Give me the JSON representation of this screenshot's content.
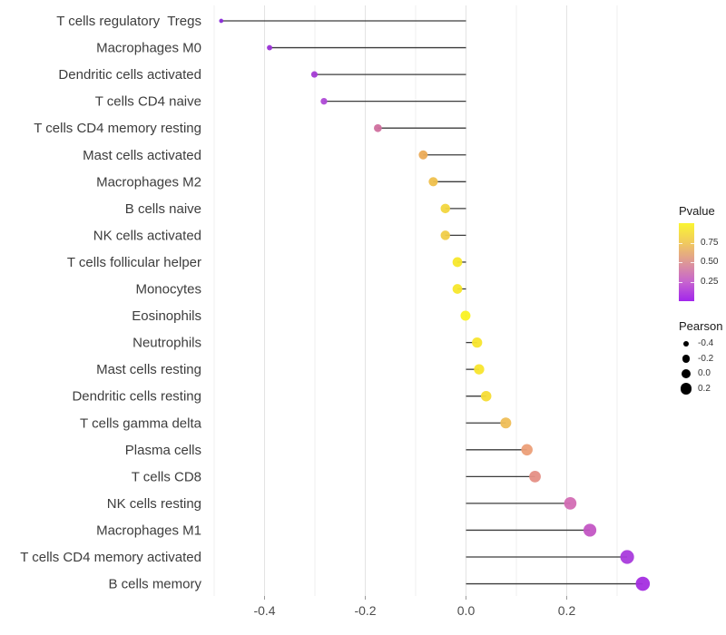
{
  "figure": {
    "background": "#ffffff"
  },
  "chart_data": {
    "type": "lollipop",
    "orientation": "horizontal",
    "title": "",
    "xlabel": "",
    "ylabel": "",
    "xlim": [
      -0.52,
      0.37
    ],
    "baseline": 0.0,
    "x_ticks": [
      -0.4,
      -0.2,
      0.0,
      0.2
    ],
    "x_tick_labels": [
      "-0.4",
      "-0.2",
      "0.0",
      "0.2"
    ],
    "minor_grid_step": 0.1,
    "grid_values": [
      -0.5,
      -0.4,
      -0.3,
      -0.2,
      -0.1,
      0.0,
      0.1,
      0.2,
      0.3
    ],
    "grid_on": true,
    "legend_position": "right",
    "encoding": {
      "x_and_size": "Pearson",
      "color": "Pvalue"
    },
    "points": [
      {
        "label": "T cells regulatory  Tregs",
        "pearson": -0.486,
        "color": "#8A2BD8"
      },
      {
        "label": "Macrophages M0",
        "pearson": -0.39,
        "color": "#9A30D6"
      },
      {
        "label": "Dendritic cells activated",
        "pearson": -0.301,
        "color": "#A43BD4"
      },
      {
        "label": "T cells CD4 naive",
        "pearson": -0.282,
        "color": "#AE49D6"
      },
      {
        "label": "T cells CD4 memory resting",
        "pearson": -0.175,
        "color": "#D06F9E"
      },
      {
        "label": "Mast cells activated",
        "pearson": -0.085,
        "color": "#EBAB57"
      },
      {
        "label": "Macrophages M2",
        "pearson": -0.065,
        "color": "#EFC04C"
      },
      {
        "label": "B cells naive",
        "pearson": -0.041,
        "color": "#F2D63E"
      },
      {
        "label": "NK cells activated",
        "pearson": -0.041,
        "color": "#F0CC48"
      },
      {
        "label": "T cells follicular helper",
        "pearson": -0.017,
        "color": "#F7E72B"
      },
      {
        "label": "Monocytes",
        "pearson": -0.017,
        "color": "#F7E72B"
      },
      {
        "label": "Eosinophils",
        "pearson": -0.001,
        "color": "#FAF222"
      },
      {
        "label": "Neutrophils",
        "pearson": 0.022,
        "color": "#F8E52D"
      },
      {
        "label": "Mast cells resting",
        "pearson": 0.026,
        "color": "#F8E52D"
      },
      {
        "label": "Dendritic cells resting",
        "pearson": 0.04,
        "color": "#F5DC35"
      },
      {
        "label": "T cells gamma delta",
        "pearson": 0.079,
        "color": "#EFBE57"
      },
      {
        "label": "Plasma cells",
        "pearson": 0.121,
        "color": "#EC9F78"
      },
      {
        "label": "T cells CD8",
        "pearson": 0.137,
        "color": "#E58F85"
      },
      {
        "label": "NK cells resting",
        "pearson": 0.207,
        "color": "#D36DB4"
      },
      {
        "label": "Macrophages M1",
        "pearson": 0.246,
        "color": "#C356C4"
      },
      {
        "label": "T cells CD4 memory activated",
        "pearson": 0.32,
        "color": "#A93BDC"
      },
      {
        "label": "B cells memory",
        "pearson": 0.351,
        "color": "#A42DE0"
      }
    ]
  },
  "legend": {
    "pvalue": {
      "title": "Pvalue",
      "tick_labels": [
        "0.75",
        "0.50",
        "0.25"
      ],
      "tick_values": [
        0.75,
        0.5,
        0.25
      ],
      "range": [
        0,
        1
      ],
      "gradient_top_to_bottom": [
        "#FAF532",
        "#F1CA5E",
        "#DE9896",
        "#C765CE",
        "#A226EC"
      ]
    },
    "pearson": {
      "title": "Pearson",
      "items": [
        {
          "label": "-0.4",
          "value": -0.4
        },
        {
          "label": "-0.2",
          "value": -0.2
        },
        {
          "label": "0.0",
          "value": 0.0
        },
        {
          "label": "0.2",
          "value": 0.2
        }
      ]
    }
  },
  "colors": {
    "stem": "#3C3C3C",
    "grid_major": "#E3E3E3",
    "grid_minor": "#EFEFEF",
    "axis_text": "#4D4D4D",
    "y_label_text": "#3D3D3D",
    "tick_mark": "#9B9B9B"
  }
}
